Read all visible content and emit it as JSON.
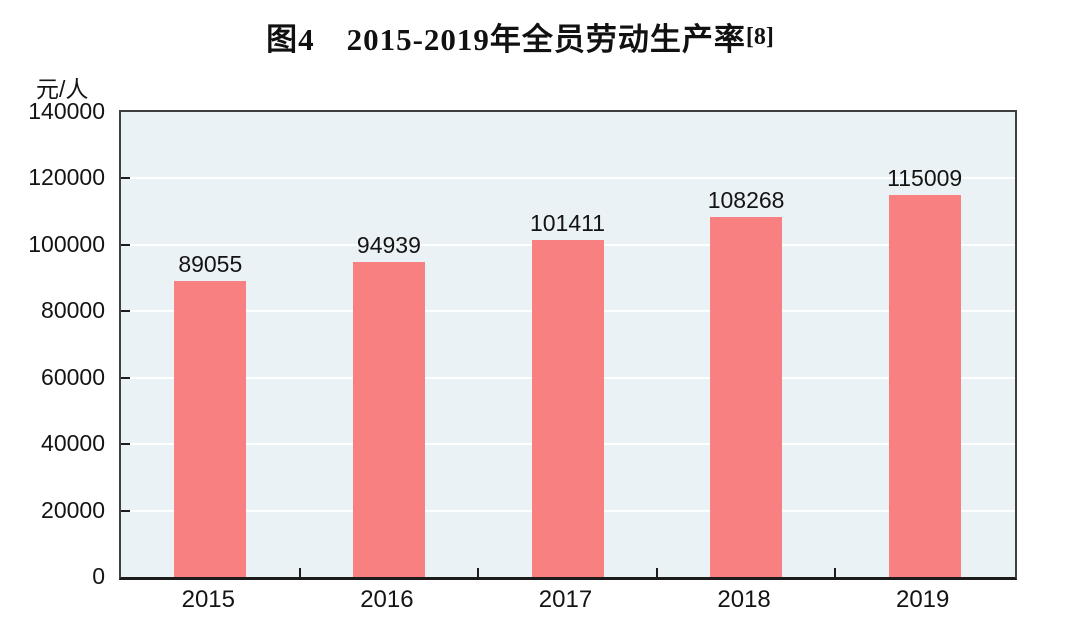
{
  "title": {
    "text": "图4　2015-2019年全员劳动生产率",
    "superscript": "[8]"
  },
  "chart_data": {
    "type": "bar",
    "title": "图4 2015-2019年全员劳动生产率[8]",
    "categories": [
      "2015",
      "2016",
      "2017",
      "2018",
      "2019"
    ],
    "values": [
      89055,
      94939,
      101411,
      108268,
      115009
    ],
    "xlabel": "",
    "ylabel": "元/人",
    "ylim": [
      0,
      140000
    ],
    "ytick_interval": 20000,
    "ytick_labels": [
      "0",
      "20000",
      "40000",
      "60000",
      "80000",
      "100000",
      "120000",
      "140000"
    ],
    "grid": true,
    "legend_position": "none",
    "bar_color": "#f98080",
    "plot_background": "#ebf2f6",
    "gridline_color": "#ffffff",
    "axis_border_color": "#3f3f3f",
    "text_color": "#141414"
  }
}
